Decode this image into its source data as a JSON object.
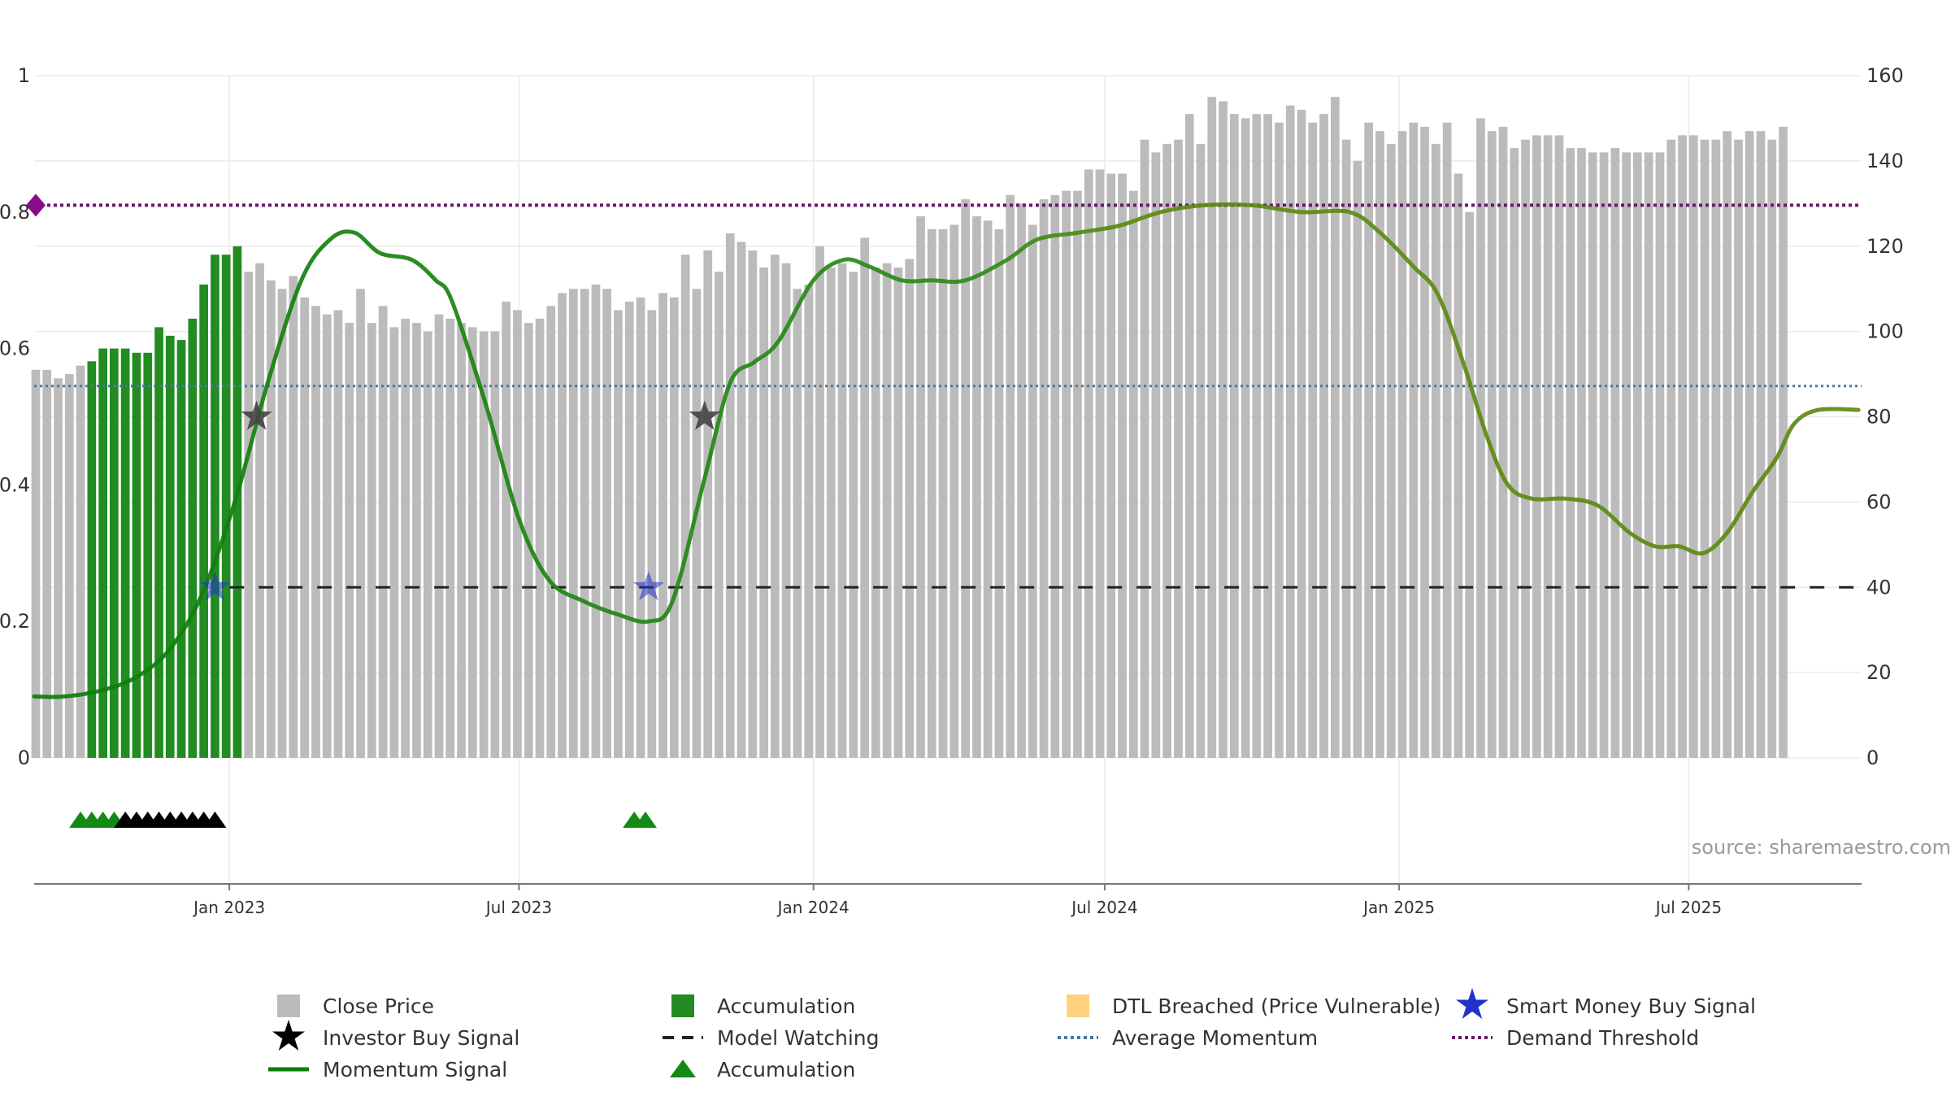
{
  "chart_data": {
    "type": "bar",
    "source_text": "source: sharemaestro.com",
    "colors": {
      "close_price": "#bbbbbb",
      "accumulation": "#228b22",
      "dtl_breached": "#ffd27f",
      "momentum": "#0a7d0a",
      "momentum_late": "#5d8a10",
      "model_watching": "#222222",
      "average_momentum": "#4a78a0",
      "demand_threshold": "#6b1a6b",
      "investor_star": "#444444",
      "smart_money_star": "#2233cc",
      "triangle_accumulation": "#138a13",
      "triangle_other": "#000000"
    },
    "left_axis": {
      "range": [
        0,
        1
      ],
      "ticks": [
        "0",
        "0.2",
        "0.4",
        "0.6",
        "0.8",
        "1"
      ],
      "tick_values": [
        0,
        0.2,
        0.4,
        0.6,
        0.8,
        1
      ]
    },
    "right_axis": {
      "range": [
        0,
        160
      ],
      "ticks": [
        "0",
        "20",
        "40",
        "60",
        "80",
        "100",
        "120",
        "140",
        "160"
      ],
      "tick_values": [
        0,
        20,
        40,
        60,
        80,
        100,
        120,
        140,
        160
      ]
    },
    "x_axis": {
      "start": "2022-09-01",
      "end": "2025-10-17",
      "ticks": [
        {
          "label": "Jan 2023",
          "date": "2023-01-01"
        },
        {
          "label": "Jul 2023",
          "date": "2023-07-01"
        },
        {
          "label": "Jan 2024",
          "date": "2024-01-01"
        },
        {
          "label": "Jul 2024",
          "date": "2024-07-01"
        },
        {
          "label": "Jan 2025",
          "date": "2025-01-01"
        },
        {
          "label": "Jul 2025",
          "date": "2025-07-01"
        }
      ]
    },
    "bars_start": "2022-09-02",
    "bars_step_days": 7,
    "close_price": [
      91,
      91,
      89,
      90,
      92,
      93,
      96,
      96,
      96,
      95,
      95,
      101,
      99,
      98,
      103,
      111,
      118,
      118,
      120,
      114,
      116,
      112,
      110,
      113,
      108,
      106,
      104,
      105,
      102,
      110,
      102,
      106,
      101,
      103,
      102,
      100,
      104,
      103,
      102,
      101,
      100,
      100,
      107,
      105,
      102,
      103,
      106,
      109,
      110,
      110,
      111,
      110,
      105,
      107,
      108,
      105,
      109,
      108,
      118,
      110,
      119,
      114,
      123,
      121,
      119,
      115,
      118,
      116,
      110,
      111,
      120,
      115,
      116,
      114,
      122,
      115,
      116,
      115,
      117,
      127,
      124,
      124,
      125,
      131,
      127,
      126,
      124,
      132,
      130,
      125,
      131,
      132,
      133,
      133,
      138,
      138,
      137,
      137,
      133,
      145,
      142,
      144,
      145,
      151,
      144,
      155,
      154,
      151,
      150,
      151,
      151,
      149,
      153,
      152,
      149,
      151,
      155,
      145,
      140,
      149,
      147,
      144,
      147,
      149,
      148,
      144,
      149,
      137,
      128,
      150,
      147,
      148,
      143,
      145,
      146,
      146,
      146,
      143,
      143,
      142,
      142,
      143,
      142,
      142,
      142,
      142,
      145,
      146,
      146,
      145,
      145,
      147,
      145,
      147,
      147,
      145,
      148
    ],
    "bar_category": "AAAAAGGGGGGGGGGGGGGAAAAAAAAAAAAAAAAAAAAAAAAAAAAAAAAAAAAAAAAAAAAAAAAAAAAAAAAAAAAAAAAAAAAAAAAAAAAAAAAAAAAAAAAAAAAAAAAAAAAAAAAAAAAAAAAAAAAAAAAAAAAAAAAAAAAAAAAAAAAAAAA",
    "momentum_signal": [
      [
        "2022-09-01",
        0.09
      ],
      [
        "2022-09-20",
        0.09
      ],
      [
        "2022-10-15",
        0.1
      ],
      [
        "2022-11-05",
        0.12
      ],
      [
        "2022-11-25",
        0.16
      ],
      [
        "2022-12-15",
        0.24
      ],
      [
        "2023-01-05",
        0.38
      ],
      [
        "2023-01-25",
        0.55
      ],
      [
        "2023-02-15",
        0.7
      ],
      [
        "2023-03-05",
        0.76
      ],
      [
        "2023-03-20",
        0.77
      ],
      [
        "2023-04-05",
        0.74
      ],
      [
        "2023-04-25",
        0.73
      ],
      [
        "2023-05-10",
        0.7
      ],
      [
        "2023-05-20",
        0.67
      ],
      [
        "2023-06-10",
        0.52
      ],
      [
        "2023-07-01",
        0.35
      ],
      [
        "2023-07-20",
        0.26
      ],
      [
        "2023-08-10",
        0.23
      ],
      [
        "2023-09-01",
        0.21
      ],
      [
        "2023-09-20",
        0.2
      ],
      [
        "2023-10-05",
        0.23
      ],
      [
        "2023-10-25",
        0.41
      ],
      [
        "2023-11-10",
        0.55
      ],
      [
        "2023-11-25",
        0.58
      ],
      [
        "2023-12-10",
        0.61
      ],
      [
        "2024-01-01",
        0.7
      ],
      [
        "2024-01-20",
        0.73
      ],
      [
        "2024-02-05",
        0.72
      ],
      [
        "2024-02-25",
        0.7
      ],
      [
        "2024-03-15",
        0.7
      ],
      [
        "2024-04-05",
        0.7
      ],
      [
        "2024-05-01",
        0.73
      ],
      [
        "2024-05-20",
        0.76
      ],
      [
        "2024-06-15",
        0.77
      ],
      [
        "2024-07-10",
        0.78
      ],
      [
        "2024-08-05",
        0.8
      ],
      [
        "2024-09-01",
        0.81
      ],
      [
        "2024-10-01",
        0.81
      ],
      [
        "2024-11-01",
        0.8
      ],
      [
        "2024-12-01",
        0.8
      ],
      [
        "2024-12-20",
        0.77
      ],
      [
        "2025-01-10",
        0.72
      ],
      [
        "2025-01-25",
        0.68
      ],
      [
        "2025-02-10",
        0.58
      ],
      [
        "2025-02-25",
        0.47
      ],
      [
        "2025-03-10",
        0.4
      ],
      [
        "2025-03-25",
        0.38
      ],
      [
        "2025-04-15",
        0.38
      ],
      [
        "2025-05-05",
        0.37
      ],
      [
        "2025-05-25",
        0.33
      ],
      [
        "2025-06-10",
        0.31
      ],
      [
        "2025-06-25",
        0.31
      ],
      [
        "2025-07-10",
        0.3
      ],
      [
        "2025-07-25",
        0.33
      ],
      [
        "2025-08-10",
        0.39
      ],
      [
        "2025-08-25",
        0.44
      ],
      [
        "2025-09-05",
        0.49
      ],
      [
        "2025-09-20",
        0.51
      ],
      [
        "2025-10-15",
        0.51
      ]
    ],
    "model_watching_level": 0.25,
    "model_watching_start": "2023-01-01",
    "average_momentum": 0.545,
    "demand_threshold": 0.81,
    "investor_buy_signals": [
      [
        "2023-01-18",
        0.5
      ],
      [
        "2023-10-25",
        0.5
      ]
    ],
    "smart_money_buy_signals": [
      [
        "2022-12-23",
        0.25
      ],
      [
        "2023-09-20",
        0.25
      ]
    ],
    "signal_triangles": [
      {
        "date": "2022-09-30",
        "kind": "accumulation"
      },
      {
        "date": "2022-10-07",
        "kind": "accumulation"
      },
      {
        "date": "2022-10-14",
        "kind": "accumulation"
      },
      {
        "date": "2022-10-21",
        "kind": "accumulation"
      },
      {
        "date": "2022-10-28",
        "kind": "other"
      },
      {
        "date": "2022-11-04",
        "kind": "other"
      },
      {
        "date": "2022-11-11",
        "kind": "other"
      },
      {
        "date": "2022-11-18",
        "kind": "other"
      },
      {
        "date": "2022-11-25",
        "kind": "other"
      },
      {
        "date": "2022-12-02",
        "kind": "other"
      },
      {
        "date": "2022-12-09",
        "kind": "other"
      },
      {
        "date": "2022-12-16",
        "kind": "other"
      },
      {
        "date": "2022-12-23",
        "kind": "other"
      },
      {
        "date": "2023-09-11",
        "kind": "accumulation"
      },
      {
        "date": "2023-09-18",
        "kind": "accumulation"
      }
    ],
    "legend": [
      {
        "label": "Close Price",
        "kind": "square",
        "color_key": "close_price"
      },
      {
        "label": "Accumulation",
        "kind": "square",
        "color_key": "accumulation"
      },
      {
        "label": "DTL Breached (Price Vulnerable)",
        "kind": "square",
        "color_key": "dtl_breached"
      },
      {
        "label": "Smart Money Buy Signal",
        "kind": "star",
        "color_key": "smart_money_star"
      },
      {
        "label": "Investor Buy Signal",
        "kind": "star",
        "color_key": "triangle_other"
      },
      {
        "label": "Model Watching",
        "kind": "dash",
        "color_key": "model_watching"
      },
      {
        "label": "Average Momentum",
        "kind": "dot",
        "color_key": "average_momentum"
      },
      {
        "label": "Demand Threshold",
        "kind": "dot",
        "color_key": "demand_threshold"
      },
      {
        "label": "Momentum Signal",
        "kind": "line",
        "color_key": "momentum"
      },
      {
        "label": "Accumulation",
        "kind": "triangle",
        "color_key": "triangle_accumulation"
      }
    ]
  }
}
